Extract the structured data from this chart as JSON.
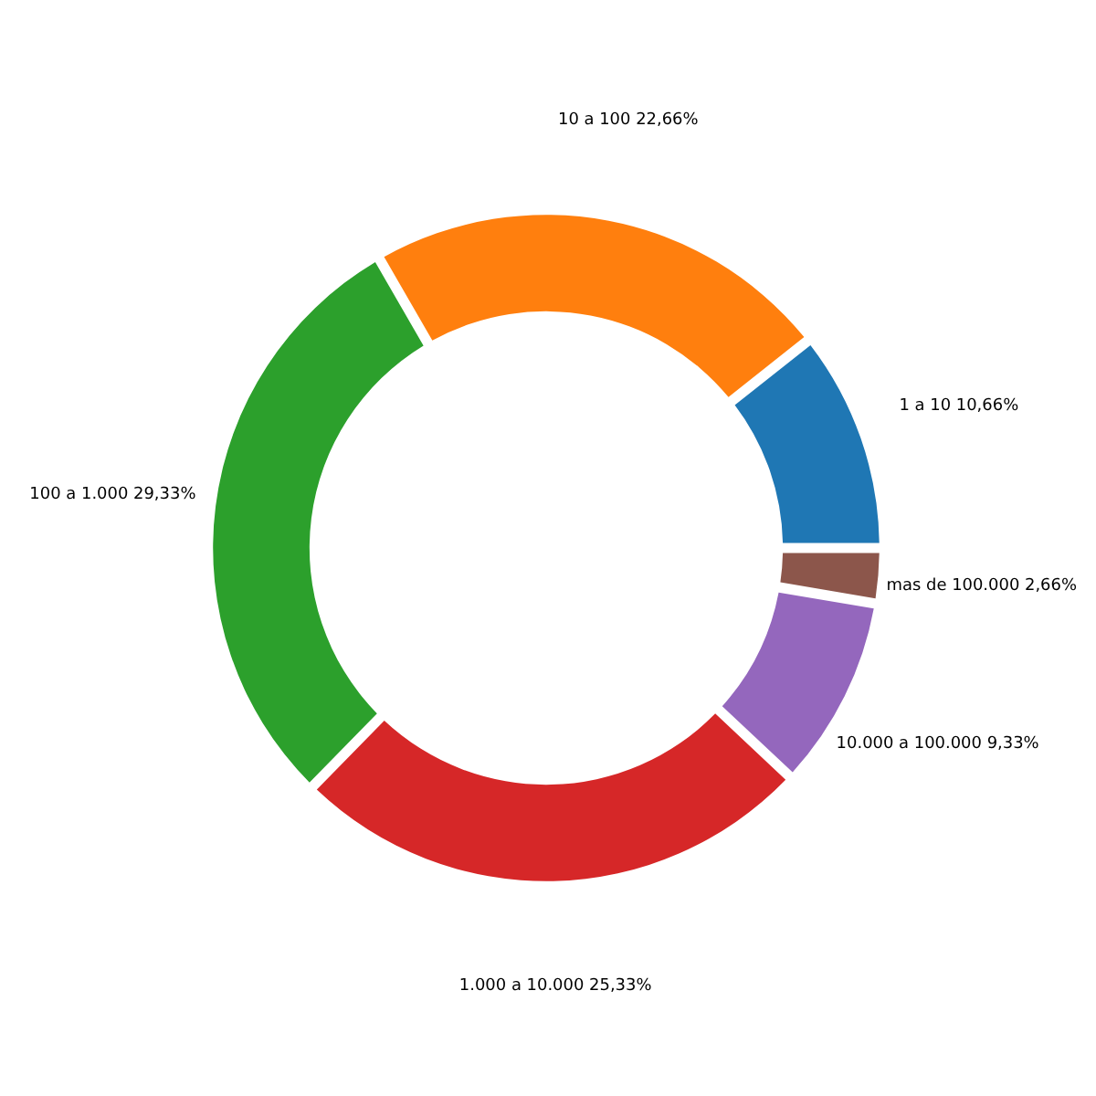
{
  "chart_data": {
    "type": "donut",
    "categories": [
      "1 a 10",
      "10 a 100",
      "100 a 1.000",
      "1.000 a 10.000",
      "10.000 a 100.000",
      "mas de 100.000"
    ],
    "values": [
      10.66,
      22.66,
      29.33,
      25.33,
      9.33,
      2.66
    ],
    "value_labels": [
      "10,66%",
      "22,66%",
      "29,33%",
      "25,33%",
      "9,33%",
      "2,66%"
    ],
    "colors": [
      "#1f77b4",
      "#ff7f0e",
      "#2ca02c",
      "#d62728",
      "#9467bd",
      "#8c564b"
    ],
    "legend": false
  }
}
